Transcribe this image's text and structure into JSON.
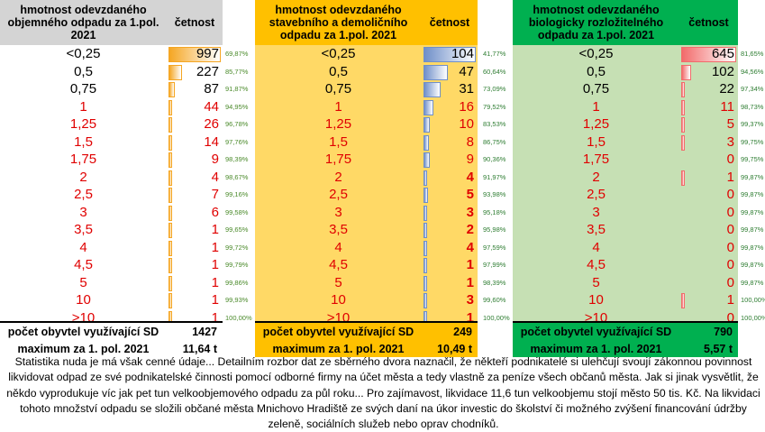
{
  "panels": [
    {
      "title": "hmotnost odevzdaného objemného odpadu za 1.pol. 2021",
      "count_label": "četnost",
      "header_bg": "#d4d4d4",
      "body_bg": "#ffffff",
      "bar_color": "#f5a623",
      "bar_max": 997,
      "rows": [
        {
          "cat": "<0,25",
          "val": "997",
          "v": 997,
          "pct": "69,87%",
          "red": false,
          "bold": false
        },
        {
          "cat": "0,5",
          "val": "227",
          "v": 227,
          "pct": "85,77%",
          "red": false,
          "bold": false
        },
        {
          "cat": "0,75",
          "val": "87",
          "v": 87,
          "pct": "91,87%",
          "red": false,
          "bold": false
        },
        {
          "cat": "1",
          "val": "44",
          "v": 44,
          "pct": "94,95%",
          "red": true,
          "bold": false
        },
        {
          "cat": "1,25",
          "val": "26",
          "v": 26,
          "pct": "96,78%",
          "red": true,
          "bold": false
        },
        {
          "cat": "1,5",
          "val": "14",
          "v": 14,
          "pct": "97,76%",
          "red": true,
          "bold": false
        },
        {
          "cat": "1,75",
          "val": "9",
          "v": 9,
          "pct": "98,39%",
          "red": true,
          "bold": false
        },
        {
          "cat": "2",
          "val": "4",
          "v": 4,
          "pct": "98,67%",
          "red": true,
          "bold": false
        },
        {
          "cat": "2,5",
          "val": "7",
          "v": 7,
          "pct": "99,16%",
          "red": true,
          "bold": false
        },
        {
          "cat": "3",
          "val": "6",
          "v": 6,
          "pct": "99,58%",
          "red": true,
          "bold": false
        },
        {
          "cat": "3,5",
          "val": "1",
          "v": 1,
          "pct": "99,65%",
          "red": true,
          "bold": false
        },
        {
          "cat": "4",
          "val": "1",
          "v": 1,
          "pct": "99,72%",
          "red": true,
          "bold": false
        },
        {
          "cat": "4,5",
          "val": "1",
          "v": 1,
          "pct": "99,79%",
          "red": true,
          "bold": false
        },
        {
          "cat": "5",
          "val": "1",
          "v": 1,
          "pct": "99,86%",
          "red": true,
          "bold": false
        },
        {
          "cat": "10",
          "val": "1",
          "v": 1,
          "pct": "99,93%",
          "red": true,
          "bold": false
        },
        {
          "cat": ">10",
          "val": "1",
          "v": 1,
          "pct": "100,00%",
          "red": true,
          "bold": false
        }
      ],
      "foot1_label": "počet obyvtel využívající SD",
      "foot1_value": "1427",
      "foot2_label": "maximum za 1. pol. 2021",
      "foot2_value": "11,64 t",
      "foot_bg": "#ffffff"
    },
    {
      "title": "hmotnost odevzdaného stavebního a demoličního odpadu za 1.pol. 2021",
      "count_label": "četnost",
      "header_bg": "#ffc000",
      "body_bg": "#ffd966",
      "bar_color": "#6f8fc9",
      "bar_max": 104,
      "rows": [
        {
          "cat": "<0,25",
          "val": "104",
          "v": 104,
          "pct": "41,77%",
          "red": false,
          "bold": false
        },
        {
          "cat": "0,5",
          "val": "47",
          "v": 47,
          "pct": "60,64%",
          "red": false,
          "bold": false
        },
        {
          "cat": "0,75",
          "val": "31",
          "v": 31,
          "pct": "73,09%",
          "red": false,
          "bold": false
        },
        {
          "cat": "1",
          "val": "16",
          "v": 16,
          "pct": "79,52%",
          "red": true,
          "bold": false
        },
        {
          "cat": "1,25",
          "val": "10",
          "v": 10,
          "pct": "83,53%",
          "red": true,
          "bold": false
        },
        {
          "cat": "1,5",
          "val": "8",
          "v": 8,
          "pct": "86,75%",
          "red": true,
          "bold": false
        },
        {
          "cat": "1,75",
          "val": "9",
          "v": 9,
          "pct": "90,36%",
          "red": true,
          "bold": false
        },
        {
          "cat": "2",
          "val": "4",
          "v": 4,
          "pct": "91,97%",
          "red": true,
          "bold": true
        },
        {
          "cat": "2,5",
          "val": "5",
          "v": 5,
          "pct": "93,98%",
          "red": true,
          "bold": true
        },
        {
          "cat": "3",
          "val": "3",
          "v": 3,
          "pct": "95,18%",
          "red": true,
          "bold": true
        },
        {
          "cat": "3,5",
          "val": "2",
          "v": 2,
          "pct": "95,98%",
          "red": true,
          "bold": true
        },
        {
          "cat": "4",
          "val": "4",
          "v": 4,
          "pct": "97,59%",
          "red": true,
          "bold": true
        },
        {
          "cat": "4,5",
          "val": "1",
          "v": 1,
          "pct": "97,99%",
          "red": true,
          "bold": true
        },
        {
          "cat": "5",
          "val": "1",
          "v": 1,
          "pct": "98,39%",
          "red": true,
          "bold": true
        },
        {
          "cat": "10",
          "val": "3",
          "v": 3,
          "pct": "99,60%",
          "red": true,
          "bold": true
        },
        {
          "cat": ">10",
          "val": "1",
          "v": 1,
          "pct": "100,00%",
          "red": true,
          "bold": true
        }
      ],
      "foot1_label": "počet obyvtel využívající SD",
      "foot1_value": "249",
      "foot2_label": "maximum za 1. pol. 2021",
      "foot2_value": "10,49 t",
      "foot_bg": "#ffc000"
    },
    {
      "title": "hmotnost odevzdaného biologicky rozložitelného odpadu za 1.pol. 2021",
      "count_label": "četnost",
      "header_bg": "#00b050",
      "body_bg": "#c6e0b4",
      "bar_color": "#f26b6b",
      "bar_max": 645,
      "rows": [
        {
          "cat": "<0,25",
          "val": "645",
          "v": 645,
          "pct": "81,65%",
          "red": false,
          "bold": false
        },
        {
          "cat": "0,5",
          "val": "102",
          "v": 102,
          "pct": "94,56%",
          "red": false,
          "bold": false
        },
        {
          "cat": "0,75",
          "val": "22",
          "v": 22,
          "pct": "97,34%",
          "red": false,
          "bold": false
        },
        {
          "cat": "1",
          "val": "11",
          "v": 11,
          "pct": "98,73%",
          "red": true,
          "bold": false
        },
        {
          "cat": "1,25",
          "val": "5",
          "v": 5,
          "pct": "99,37%",
          "red": true,
          "bold": false
        },
        {
          "cat": "1,5",
          "val": "3",
          "v": 3,
          "pct": "99,75%",
          "red": true,
          "bold": false
        },
        {
          "cat": "1,75",
          "val": "0",
          "v": 0,
          "pct": "99,75%",
          "red": true,
          "bold": false
        },
        {
          "cat": "2",
          "val": "1",
          "v": 1,
          "pct": "99,87%",
          "red": true,
          "bold": false
        },
        {
          "cat": "2,5",
          "val": "0",
          "v": 0,
          "pct": "99,87%",
          "red": true,
          "bold": false
        },
        {
          "cat": "3",
          "val": "0",
          "v": 0,
          "pct": "99,87%",
          "red": true,
          "bold": false
        },
        {
          "cat": "3,5",
          "val": "0",
          "v": 0,
          "pct": "99,87%",
          "red": true,
          "bold": false
        },
        {
          "cat": "4",
          "val": "0",
          "v": 0,
          "pct": "99,87%",
          "red": true,
          "bold": false
        },
        {
          "cat": "4,5",
          "val": "0",
          "v": 0,
          "pct": "99,87%",
          "red": true,
          "bold": false
        },
        {
          "cat": "5",
          "val": "0",
          "v": 0,
          "pct": "99,87%",
          "red": true,
          "bold": false
        },
        {
          "cat": "10",
          "val": "1",
          "v": 1,
          "pct": "100,00%",
          "red": true,
          "bold": false
        },
        {
          "cat": ">10",
          "val": "0",
          "v": 0,
          "pct": "100,00%",
          "red": true,
          "bold": false
        }
      ],
      "foot1_label": "počet obyvtel využívající SD",
      "foot1_value": "790",
      "foot2_label": "maximum za 1. pol. 2021",
      "foot2_value": "5,57 t",
      "foot_bg": "#00b050"
    }
  ],
  "paragraph": "Statistika nuda je má však cenné údaje... Detailním rozbor dat ze sběrného dvora naznačil, že někteří podnikatelé si ulehčují svoují zákonnou povinnost likvidovat odpad ze své podnikatelské činnosti pomocí odborné firmy na účet města a tedy vlastně za peníze všech občanů města. Jak si jinak vysvětlit, že někdo vyprodukuje víc jak pet tun velkoobjemového odpadu za půl roku... Pro zajímavost, likvidace 11,6 tun velkoobjemu stojí město 50 tis. Kč. Na likvidaci tohoto množství odpadu se složili občané města Mnichovo Hradiště ze svých daní na úkor investic do školství či možného zvýšení financování údržby zeleně, sociálních služeb nebo oprav chodníků."
}
